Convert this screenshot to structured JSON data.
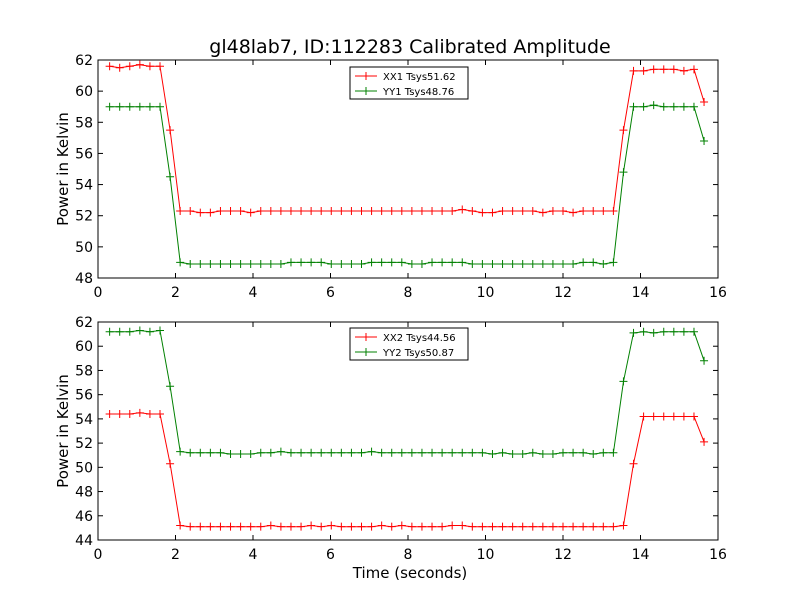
{
  "chart_data": {
    "title": "gl48lab7, ID:112283 Calibrated Amplitude",
    "xlabel": "Time (seconds)",
    "panels": [
      {
        "type": "line",
        "ylabel": "Power in Kelvin",
        "xlim": [
          0,
          16
        ],
        "ylim": [
          48,
          62
        ],
        "xticks": [
          "0",
          "2",
          "4",
          "6",
          "8",
          "10",
          "12",
          "14",
          "16"
        ],
        "yticks": [
          "48",
          "50",
          "52",
          "54",
          "56",
          "58",
          "60",
          "62"
        ],
        "legend_position": "top-center",
        "x": [
          0.3,
          0.56,
          0.82,
          1.08,
          1.34,
          1.6,
          1.86,
          2.12,
          2.38,
          2.64,
          2.9,
          3.16,
          3.42,
          3.68,
          3.94,
          4.2,
          4.46,
          4.72,
          4.98,
          5.24,
          5.5,
          5.76,
          6.02,
          6.28,
          6.54,
          6.8,
          7.06,
          7.32,
          7.58,
          7.84,
          8.1,
          8.36,
          8.62,
          8.88,
          9.14,
          9.4,
          9.66,
          9.92,
          10.18,
          10.44,
          10.7,
          10.96,
          11.22,
          11.48,
          11.74,
          12.0,
          12.26,
          12.52,
          12.78,
          13.04,
          13.3,
          13.56,
          13.82,
          14.08,
          14.34,
          14.6,
          14.86,
          15.12,
          15.38,
          15.64
        ],
        "series": [
          {
            "name": "XX1 Tsys51.62",
            "color": "#ff0000",
            "values": [
              61.6,
              61.5,
              61.6,
              61.7,
              61.6,
              61.6,
              57.5,
              52.3,
              52.3,
              52.2,
              52.2,
              52.3,
              52.3,
              52.3,
              52.2,
              52.3,
              52.3,
              52.3,
              52.3,
              52.3,
              52.3,
              52.3,
              52.3,
              52.3,
              52.3,
              52.3,
              52.3,
              52.3,
              52.3,
              52.3,
              52.3,
              52.3,
              52.3,
              52.3,
              52.3,
              52.4,
              52.3,
              52.2,
              52.2,
              52.3,
              52.3,
              52.3,
              52.3,
              52.2,
              52.3,
              52.3,
              52.2,
              52.3,
              52.3,
              52.3,
              52.3,
              57.5,
              61.3,
              61.3,
              61.4,
              61.4,
              61.4,
              61.3,
              61.4,
              59.3
            ]
          },
          {
            "name": "YY1 Tsys48.76",
            "color": "#008000",
            "values": [
              59.0,
              59.0,
              59.0,
              59.0,
              59.0,
              59.0,
              54.5,
              49.0,
              48.9,
              48.9,
              48.9,
              48.9,
              48.9,
              48.9,
              48.9,
              48.9,
              48.9,
              48.9,
              49.0,
              49.0,
              49.0,
              49.0,
              48.9,
              48.9,
              48.9,
              48.9,
              49.0,
              49.0,
              49.0,
              49.0,
              48.9,
              48.9,
              49.0,
              49.0,
              49.0,
              49.0,
              48.9,
              48.9,
              48.9,
              48.9,
              48.9,
              48.9,
              48.9,
              48.9,
              48.9,
              48.9,
              48.9,
              49.0,
              49.0,
              48.9,
              49.0,
              54.8,
              59.0,
              59.0,
              59.1,
              59.0,
              59.0,
              59.0,
              59.0,
              56.8
            ]
          }
        ]
      },
      {
        "type": "line",
        "ylabel": "Power in Kelvin",
        "xlim": [
          0,
          16
        ],
        "ylim": [
          44,
          62
        ],
        "xticks": [
          "0",
          "2",
          "4",
          "6",
          "8",
          "10",
          "12",
          "14",
          "16"
        ],
        "yticks": [
          "44",
          "46",
          "48",
          "50",
          "52",
          "54",
          "56",
          "58",
          "60",
          "62"
        ],
        "legend_position": "top-center",
        "x": [
          0.3,
          0.56,
          0.82,
          1.08,
          1.34,
          1.6,
          1.86,
          2.12,
          2.38,
          2.64,
          2.9,
          3.16,
          3.42,
          3.68,
          3.94,
          4.2,
          4.46,
          4.72,
          4.98,
          5.24,
          5.5,
          5.76,
          6.02,
          6.28,
          6.54,
          6.8,
          7.06,
          7.32,
          7.58,
          7.84,
          8.1,
          8.36,
          8.62,
          8.88,
          9.14,
          9.4,
          9.66,
          9.92,
          10.18,
          10.44,
          10.7,
          10.96,
          11.22,
          11.48,
          11.74,
          12.0,
          12.26,
          12.52,
          12.78,
          13.04,
          13.3,
          13.56,
          13.82,
          14.08,
          14.34,
          14.6,
          14.86,
          15.12,
          15.38,
          15.64
        ],
        "series": [
          {
            "name": "XX2 Tsys44.56",
            "color": "#ff0000",
            "values": [
              54.4,
              54.4,
              54.4,
              54.5,
              54.4,
              54.4,
              50.3,
              45.2,
              45.1,
              45.1,
              45.1,
              45.1,
              45.1,
              45.1,
              45.1,
              45.1,
              45.2,
              45.1,
              45.1,
              45.1,
              45.2,
              45.1,
              45.2,
              45.1,
              45.1,
              45.1,
              45.1,
              45.2,
              45.1,
              45.2,
              45.1,
              45.1,
              45.1,
              45.1,
              45.2,
              45.2,
              45.1,
              45.1,
              45.1,
              45.1,
              45.1,
              45.1,
              45.1,
              45.1,
              45.1,
              45.1,
              45.1,
              45.1,
              45.1,
              45.1,
              45.1,
              45.2,
              50.3,
              54.2,
              54.2,
              54.2,
              54.2,
              54.2,
              54.2,
              52.1
            ]
          },
          {
            "name": "YY2 Tsys50.87",
            "color": "#008000",
            "values": [
              61.2,
              61.2,
              61.2,
              61.3,
              61.2,
              61.3,
              56.7,
              51.3,
              51.2,
              51.2,
              51.2,
              51.2,
              51.1,
              51.1,
              51.1,
              51.2,
              51.2,
              51.3,
              51.2,
              51.2,
              51.2,
              51.2,
              51.2,
              51.2,
              51.2,
              51.2,
              51.3,
              51.2,
              51.2,
              51.2,
              51.2,
              51.2,
              51.2,
              51.2,
              51.2,
              51.2,
              51.2,
              51.2,
              51.1,
              51.2,
              51.1,
              51.1,
              51.2,
              51.1,
              51.1,
              51.2,
              51.2,
              51.2,
              51.1,
              51.2,
              51.2,
              57.1,
              61.1,
              61.2,
              61.1,
              61.2,
              61.2,
              61.2,
              61.2,
              58.8
            ]
          }
        ]
      }
    ]
  }
}
